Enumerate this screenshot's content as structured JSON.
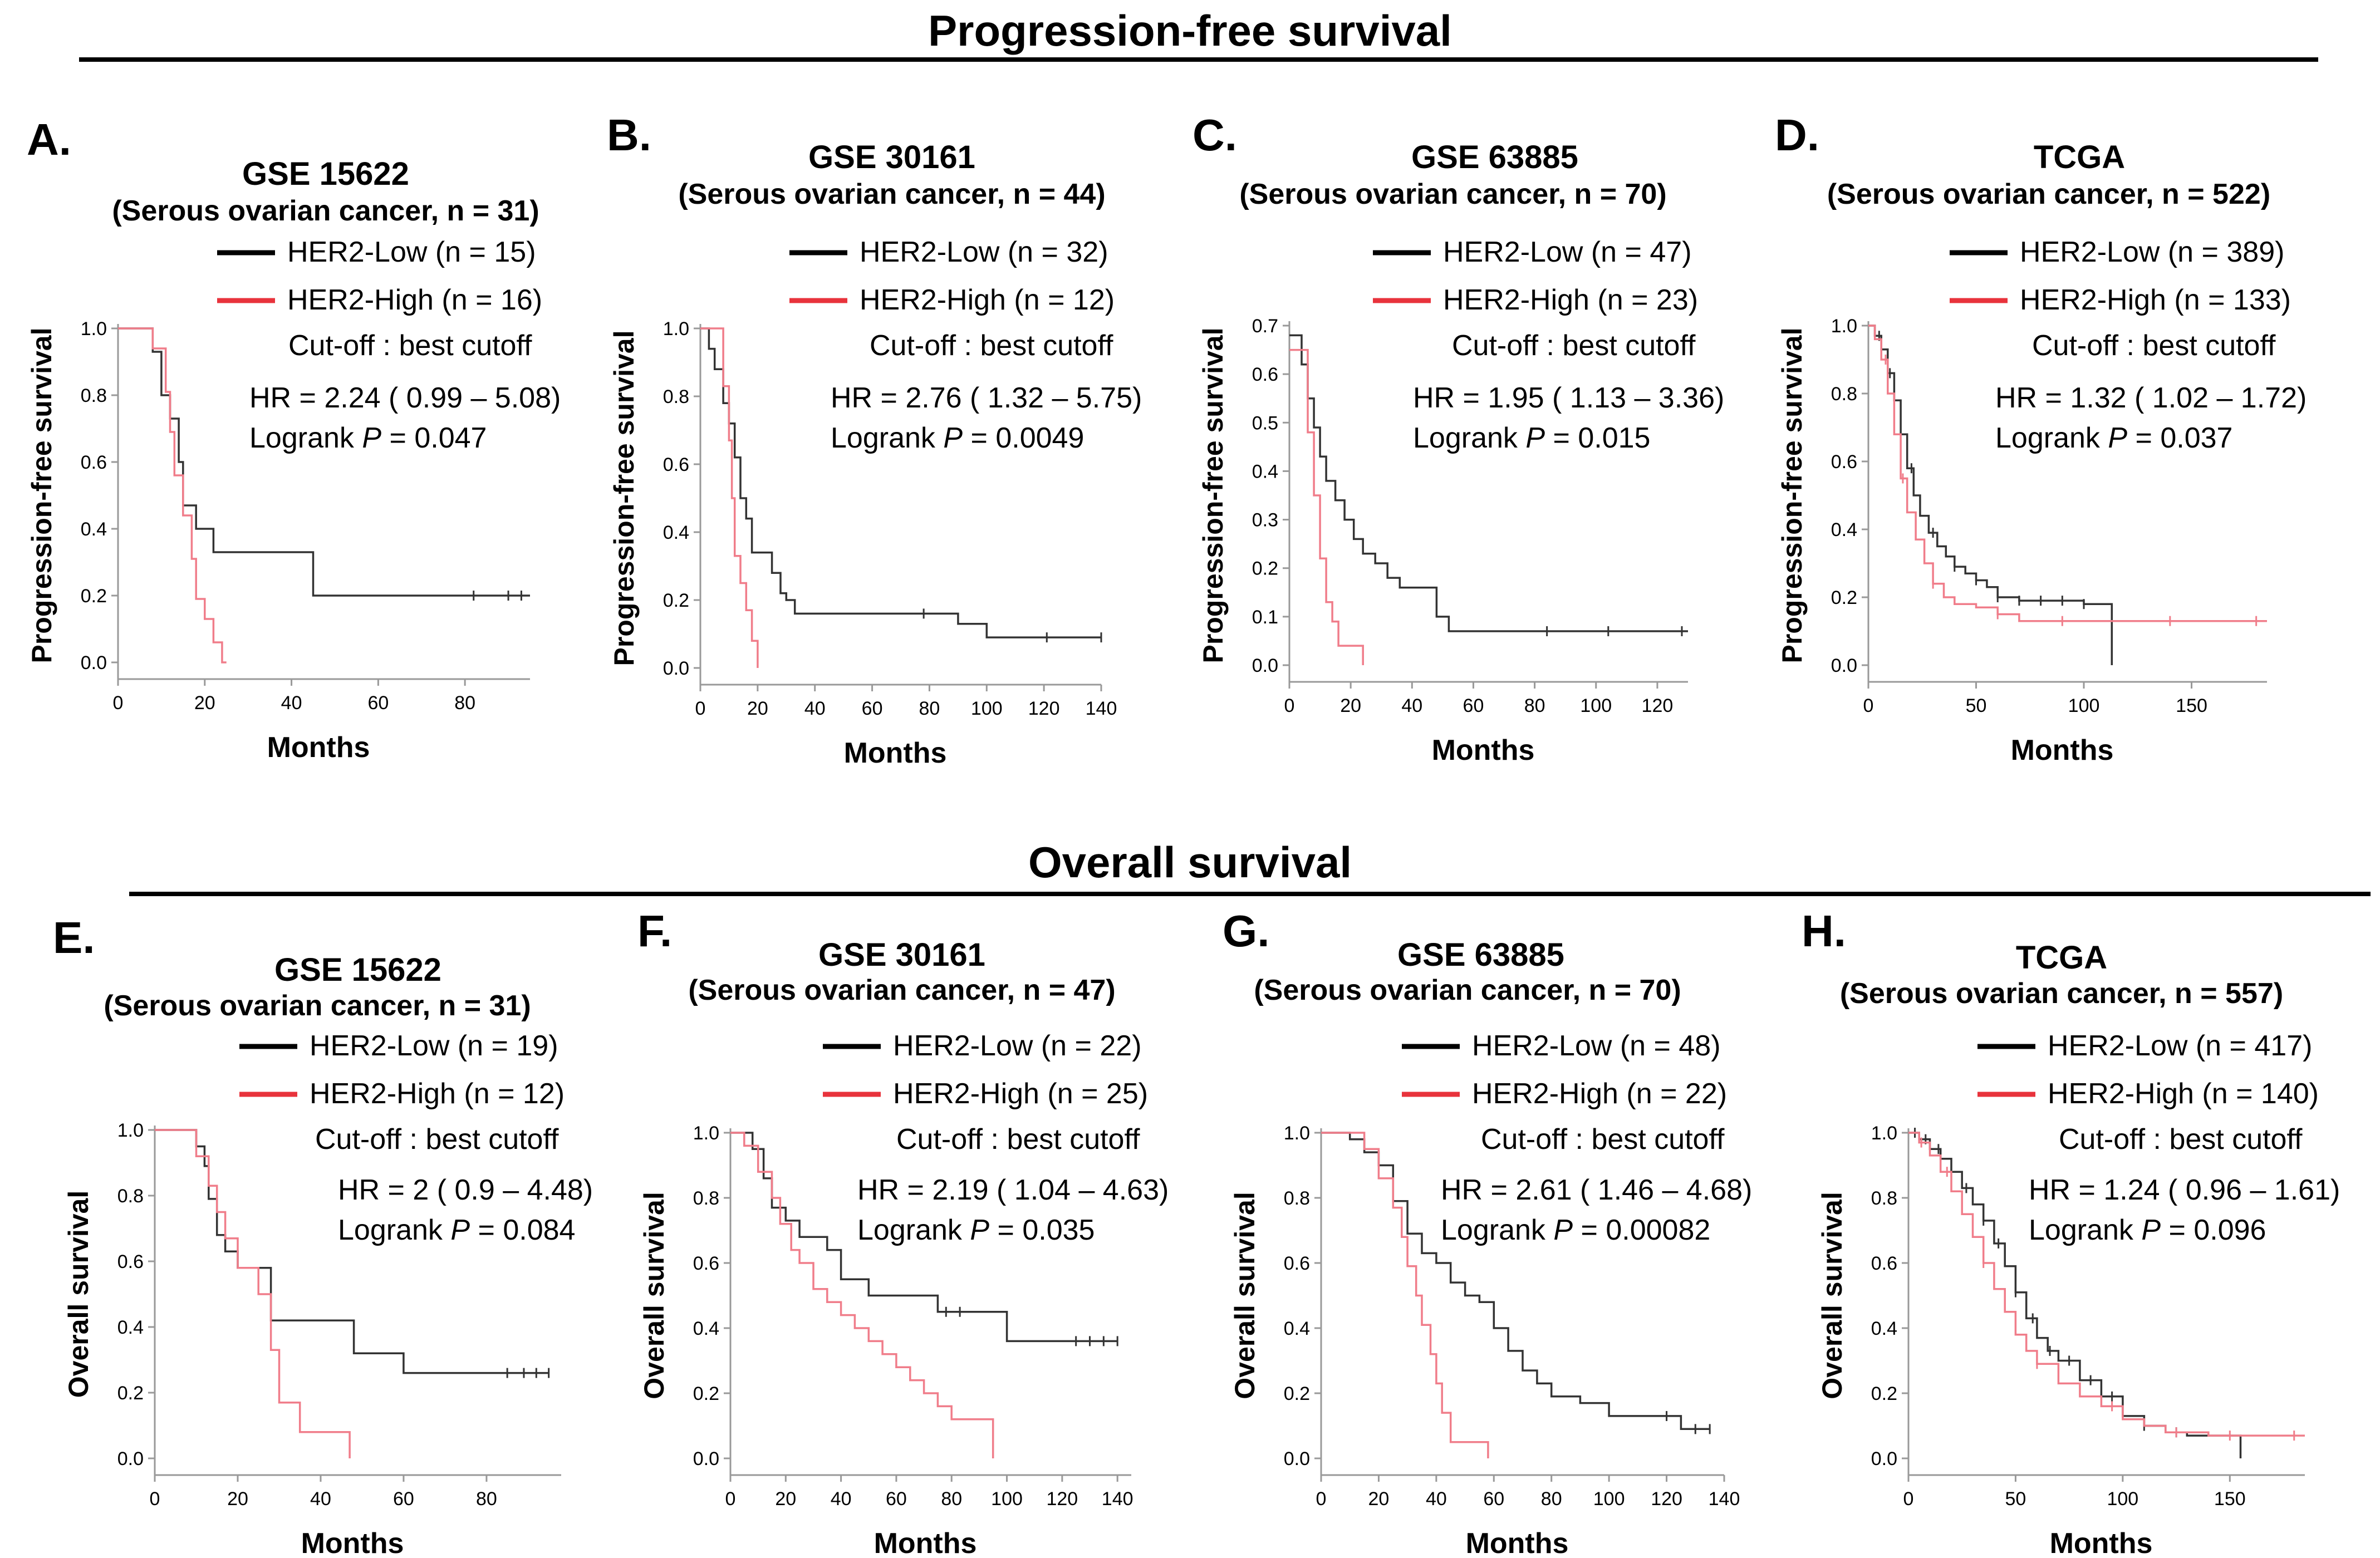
{
  "sections": {
    "pfs_title": "Progression-free  survival",
    "os_title": "Overall survival"
  },
  "colors": {
    "low": "#000000",
    "high": "#e8333c",
    "high_line": "#f07d8a",
    "low_line": "#333333"
  },
  "chart_data": [
    {
      "type": "line",
      "letter": "A.",
      "dataset": "GSE 15622",
      "subtitle": "(Serous ovarian cancer, n = 31)",
      "ylabel": "Progression-free survival",
      "xlabel": "Months",
      "xlim": [
        0,
        95
      ],
      "xticks": [
        0,
        20,
        40,
        60,
        80
      ],
      "ylim": [
        0,
        1.0
      ],
      "yticks": [
        0.0,
        0.2,
        0.4,
        0.6,
        0.8,
        1.0
      ],
      "ytick_labels": [
        "0.0",
        "0.2",
        "0.4",
        "0.6",
        "0.8",
        "1.0"
      ],
      "legend": {
        "low": "HER2-Low (n = 15)",
        "high": "HER2-High (n = 16)",
        "cutoff": "Cut-off : best cutoff"
      },
      "hr": "HR = 2.24 ( 0.99 – 5.08)",
      "logrank_prefix": "Logrank ",
      "p_label": "P",
      "p_value": " = 0.047",
      "series": [
        {
          "name": "HER2-Low",
          "x": [
            0,
            8,
            10,
            12,
            14,
            15,
            18,
            22,
            45,
            95
          ],
          "y": [
            1.0,
            0.93,
            0.8,
            0.73,
            0.6,
            0.47,
            0.4,
            0.33,
            0.2,
            0.2
          ],
          "censor_x": [
            82,
            90,
            93
          ]
        },
        {
          "name": "HER2-High",
          "x": [
            0,
            8,
            11,
            12,
            13,
            15,
            17,
            18,
            20,
            22,
            24,
            25
          ],
          "y": [
            1.0,
            0.94,
            0.81,
            0.69,
            0.56,
            0.44,
            0.31,
            0.19,
            0.13,
            0.06,
            0.0,
            0.0
          ],
          "censor_x": []
        }
      ]
    },
    {
      "type": "line",
      "letter": "B.",
      "dataset": "GSE 30161",
      "subtitle": "(Serous ovarian cancer, n = 44)",
      "ylabel": "Progression-free survival",
      "xlabel": "Months",
      "xlim": [
        0,
        140
      ],
      "xticks": [
        0,
        20,
        40,
        60,
        80,
        100,
        120,
        140
      ],
      "ylim": [
        0,
        1.0
      ],
      "yticks": [
        0.0,
        0.2,
        0.4,
        0.6,
        0.8,
        1.0
      ],
      "ytick_labels": [
        "0.0",
        "0.2",
        "0.4",
        "0.6",
        "0.8",
        "1.0"
      ],
      "legend": {
        "low": "HER2-Low (n = 32)",
        "high": "HER2-High (n = 12)",
        "cutoff": "Cut-off : best cutoff"
      },
      "hr": "HR = 2.76 ( 1.32 – 5.75)",
      "logrank_prefix": "Logrank ",
      "p_label": "P",
      "p_value": " = 0.0049",
      "series": [
        {
          "name": "HER2-Low",
          "x": [
            0,
            3,
            5,
            8,
            10,
            12,
            14,
            16,
            18,
            20,
            25,
            28,
            30,
            33,
            90,
            100,
            140
          ],
          "y": [
            1.0,
            0.94,
            0.88,
            0.78,
            0.72,
            0.62,
            0.5,
            0.44,
            0.34,
            0.34,
            0.28,
            0.22,
            0.2,
            0.16,
            0.13,
            0.09,
            0.09
          ],
          "censor_x": [
            78,
            121,
            140
          ]
        },
        {
          "name": "HER2-High",
          "x": [
            0,
            8,
            10,
            11,
            12,
            14,
            16,
            18,
            20
          ],
          "y": [
            1.0,
            0.83,
            0.67,
            0.5,
            0.33,
            0.25,
            0.17,
            0.08,
            0.0
          ],
          "censor_x": []
        }
      ]
    },
    {
      "type": "line",
      "letter": "C.",
      "dataset": "GSE 63885",
      "subtitle": "(Serous ovarian cancer, n = 70)",
      "ylabel": "Progression-free survival",
      "xlabel": "Months",
      "xlim": [
        0,
        130
      ],
      "xticks": [
        0,
        20,
        40,
        60,
        80,
        100,
        120
      ],
      "ylim": [
        0,
        0.7
      ],
      "yticks": [
        0.0,
        0.1,
        0.2,
        0.3,
        0.4,
        0.5,
        0.6,
        0.7
      ],
      "ytick_labels": [
        "0.0",
        "0.1",
        "0.2",
        "0.3",
        "0.4",
        "0.5",
        "0.6",
        "0.7"
      ],
      "legend": {
        "low": "HER2-Low (n = 47)",
        "high": "HER2-High (n = 23)",
        "cutoff": "Cut-off : best cutoff"
      },
      "hr": "HR = 1.95 ( 1.13 – 3.36)",
      "logrank_prefix": "Logrank ",
      "p_label": "P",
      "p_value": " = 0.015",
      "series": [
        {
          "name": "HER2-Low",
          "x": [
            0,
            4,
            6,
            8,
            10,
            12,
            15,
            18,
            21,
            24,
            28,
            32,
            36,
            42,
            48,
            52,
            130
          ],
          "y": [
            0.68,
            0.62,
            0.55,
            0.49,
            0.43,
            0.38,
            0.34,
            0.3,
            0.26,
            0.23,
            0.21,
            0.18,
            0.16,
            0.16,
            0.1,
            0.07,
            0.07
          ],
          "censor_x": [
            84,
            104,
            128
          ]
        },
        {
          "name": "HER2-High",
          "x": [
            0,
            6,
            8,
            10,
            12,
            14,
            16,
            20,
            24
          ],
          "y": [
            0.65,
            0.48,
            0.35,
            0.22,
            0.13,
            0.09,
            0.04,
            0.04,
            0.0
          ],
          "censor_x": []
        }
      ]
    },
    {
      "type": "line",
      "letter": "D.",
      "dataset": "TCGA",
      "subtitle": "(Serous ovarian cancer, n = 522)",
      "ylabel": "Progression-free survival",
      "xlabel": "Months",
      "xlim": [
        0,
        185
      ],
      "xticks": [
        0,
        50,
        100,
        150
      ],
      "ylim": [
        0,
        1.0
      ],
      "yticks": [
        0.0,
        0.2,
        0.4,
        0.6,
        0.8,
        1.0
      ],
      "ytick_labels": [
        "0.0",
        "0.2",
        "0.4",
        "0.6",
        "0.8",
        "1.0"
      ],
      "legend": {
        "low": "HER2-Low (n = 389)",
        "high": "HER2-High (n = 133)",
        "cutoff": "Cut-off : best cutoff"
      },
      "hr": "HR = 1.32 ( 1.02 – 1.72)",
      "logrank_prefix": "Logrank ",
      "p_label": "P",
      "p_value": " = 0.037",
      "series": [
        {
          "name": "HER2-Low",
          "x": [
            0,
            3,
            6,
            9,
            12,
            15,
            18,
            21,
            24,
            28,
            32,
            36,
            40,
            45,
            50,
            55,
            60,
            70,
            80,
            90,
            100,
            113,
            113
          ],
          "y": [
            1.0,
            0.97,
            0.93,
            0.86,
            0.78,
            0.68,
            0.58,
            0.5,
            0.44,
            0.39,
            0.35,
            0.32,
            0.29,
            0.27,
            0.25,
            0.23,
            0.2,
            0.19,
            0.19,
            0.19,
            0.18,
            0.18,
            0.0
          ],
          "censor_x": [
            5,
            10,
            20,
            30,
            40,
            50,
            60,
            70,
            80,
            90,
            100
          ]
        },
        {
          "name": "HER2-High",
          "x": [
            0,
            3,
            6,
            9,
            12,
            15,
            18,
            22,
            26,
            30,
            35,
            40,
            50,
            60,
            70,
            185
          ],
          "y": [
            1.0,
            0.96,
            0.9,
            0.8,
            0.68,
            0.55,
            0.45,
            0.37,
            0.3,
            0.24,
            0.2,
            0.18,
            0.17,
            0.15,
            0.13,
            0.13
          ],
          "censor_x": [
            8,
            16,
            30,
            60,
            90,
            140,
            180
          ]
        }
      ]
    },
    {
      "type": "line",
      "letter": "E.",
      "dataset": "GSE 15622",
      "subtitle": "(Serous ovarian cancer, n = 31)",
      "ylabel": "Overall survival",
      "xlabel": "Months",
      "xlim": [
        0,
        98
      ],
      "xticks": [
        0,
        20,
        40,
        60,
        80
      ],
      "ylim": [
        0,
        1.0
      ],
      "yticks": [
        0.0,
        0.2,
        0.4,
        0.6,
        0.8,
        1.0
      ],
      "ytick_labels": [
        "0.0",
        "0.2",
        "0.4",
        "0.6",
        "0.8",
        "1.0"
      ],
      "legend": {
        "low": "HER2-Low (n = 19)",
        "high": "HER2-High (n = 12)",
        "cutoff": "Cut-off : best cutoff"
      },
      "hr": "HR = 2 ( 0.9 – 4.48)",
      "logrank_prefix": "Logrank ",
      "p_label": "P",
      "p_value": " = 0.084",
      "series": [
        {
          "name": "HER2-Low",
          "x": [
            0,
            10,
            12,
            13,
            15,
            17,
            20,
            25,
            28,
            40,
            48,
            60,
            95
          ],
          "y": [
            1.0,
            0.95,
            0.89,
            0.79,
            0.68,
            0.63,
            0.58,
            0.58,
            0.42,
            0.42,
            0.32,
            0.26,
            0.26
          ],
          "censor_x": [
            85,
            89,
            92,
            95
          ]
        },
        {
          "name": "HER2-High",
          "x": [
            0,
            10,
            13,
            15,
            17,
            20,
            25,
            28,
            30,
            35,
            47,
            47
          ],
          "y": [
            1.0,
            0.92,
            0.83,
            0.75,
            0.67,
            0.58,
            0.5,
            0.33,
            0.17,
            0.08,
            0.08,
            0.0
          ],
          "censor_x": []
        }
      ]
    },
    {
      "type": "line",
      "letter": "F.",
      "dataset": "GSE 30161",
      "subtitle": "(Serous ovarian cancer, n = 47)",
      "ylabel": "Overall survival",
      "xlabel": "Months",
      "xlim": [
        0,
        145
      ],
      "xticks": [
        0,
        20,
        40,
        60,
        80,
        100,
        120,
        140
      ],
      "ylim": [
        0,
        1.0
      ],
      "yticks": [
        0.0,
        0.2,
        0.4,
        0.6,
        0.8,
        1.0
      ],
      "ytick_labels": [
        "0.0",
        "0.2",
        "0.4",
        "0.6",
        "0.8",
        "1.0"
      ],
      "legend": {
        "low": "HER2-Low (n = 22)",
        "high": "HER2-High (n = 25)",
        "cutoff": "Cut-off : best cutoff"
      },
      "hr": "HR = 2.19 ( 1.04 – 4.63)",
      "logrank_prefix": "Logrank ",
      "p_label": "P",
      "p_value": " = 0.035",
      "series": [
        {
          "name": "HER2-Low",
          "x": [
            0,
            8,
            12,
            15,
            20,
            25,
            30,
            35,
            40,
            50,
            60,
            75,
            90,
            100,
            140
          ],
          "y": [
            1.0,
            0.95,
            0.86,
            0.77,
            0.73,
            0.68,
            0.68,
            0.64,
            0.55,
            0.5,
            0.5,
            0.45,
            0.45,
            0.36,
            0.36
          ],
          "censor_x": [
            78,
            83,
            125,
            130,
            135,
            140
          ]
        },
        {
          "name": "HER2-High",
          "x": [
            0,
            5,
            10,
            15,
            18,
            22,
            25,
            30,
            35,
            40,
            45,
            50,
            55,
            60,
            65,
            70,
            75,
            80,
            92,
            95
          ],
          "y": [
            1.0,
            0.96,
            0.88,
            0.8,
            0.72,
            0.64,
            0.6,
            0.52,
            0.48,
            0.44,
            0.4,
            0.36,
            0.32,
            0.28,
            0.24,
            0.2,
            0.16,
            0.12,
            0.12,
            0.0
          ],
          "censor_x": []
        }
      ]
    },
    {
      "type": "line",
      "letter": "G.",
      "dataset": "GSE 63885",
      "subtitle": "(Serous ovarian cancer, n = 70)",
      "ylabel": "Overall survival",
      "xlabel": "Months",
      "xlim": [
        0,
        140
      ],
      "xticks": [
        0,
        20,
        40,
        60,
        80,
        100,
        120,
        140
      ],
      "ylim": [
        0,
        1.0
      ],
      "yticks": [
        0.0,
        0.2,
        0.4,
        0.6,
        0.8,
        1.0
      ],
      "ytick_labels": [
        "0.0",
        "0.2",
        "0.4",
        "0.6",
        "0.8",
        "1.0"
      ],
      "legend": {
        "low": "HER2-Low (n = 48)",
        "high": "HER2-High (n = 22)",
        "cutoff": "Cut-off : best cutoff"
      },
      "hr": "HR = 2.61 ( 1.46 – 4.68)",
      "logrank_prefix": "Logrank ",
      "p_label": "P",
      "p_value": " = 0.00082",
      "series": [
        {
          "name": "HER2-Low",
          "x": [
            0,
            10,
            15,
            20,
            25,
            30,
            35,
            40,
            45,
            50,
            55,
            60,
            65,
            70,
            75,
            80,
            90,
            100,
            110,
            125,
            135
          ],
          "y": [
            1.0,
            0.98,
            0.94,
            0.9,
            0.79,
            0.69,
            0.63,
            0.6,
            0.54,
            0.5,
            0.48,
            0.4,
            0.33,
            0.27,
            0.23,
            0.19,
            0.17,
            0.13,
            0.13,
            0.09,
            0.09
          ],
          "censor_x": [
            120,
            130,
            135
          ]
        },
        {
          "name": "HER2-High",
          "x": [
            0,
            15,
            20,
            25,
            28,
            30,
            33,
            35,
            38,
            40,
            42,
            45,
            50,
            58,
            58
          ],
          "y": [
            1.0,
            0.95,
            0.86,
            0.77,
            0.68,
            0.59,
            0.5,
            0.41,
            0.32,
            0.23,
            0.14,
            0.05,
            0.05,
            0.05,
            0.0
          ],
          "censor_x": []
        }
      ]
    },
    {
      "type": "line",
      "letter": "H.",
      "dataset": "TCGA",
      "subtitle": "(Serous ovarian cancer, n = 557)",
      "ylabel": "Overall survival",
      "xlabel": "Months",
      "xlim": [
        0,
        185
      ],
      "xticks": [
        0,
        50,
        100,
        150
      ],
      "ylim": [
        0,
        1.0
      ],
      "yticks": [
        0.0,
        0.2,
        0.4,
        0.6,
        0.8,
        1.0
      ],
      "ytick_labels": [
        "0.0",
        "0.2",
        "0.4",
        "0.6",
        "0.8",
        "1.0"
      ],
      "legend": {
        "low": "HER2-Low (n = 417)",
        "high": "HER2-High (n = 140)",
        "cutoff": "Cut-off : best cutoff"
      },
      "hr": "HR = 1.24 ( 0.96 – 1.61)",
      "logrank_prefix": "Logrank ",
      "p_label": "P",
      "p_value": " = 0.096",
      "series": [
        {
          "name": "HER2-Low",
          "x": [
            0,
            5,
            10,
            15,
            20,
            25,
            30,
            35,
            40,
            45,
            50,
            55,
            60,
            65,
            70,
            80,
            90,
            100,
            110,
            120,
            130,
            140,
            155,
            155
          ],
          "y": [
            1.0,
            0.98,
            0.95,
            0.92,
            0.88,
            0.83,
            0.78,
            0.73,
            0.66,
            0.59,
            0.51,
            0.43,
            0.37,
            0.33,
            0.3,
            0.24,
            0.19,
            0.13,
            0.1,
            0.08,
            0.07,
            0.07,
            0.07,
            0.0
          ],
          "censor_x": [
            3,
            8,
            14,
            20,
            27,
            35,
            42,
            50,
            58,
            66,
            75,
            85,
            95,
            110,
            125
          ]
        },
        {
          "name": "HER2-High",
          "x": [
            0,
            5,
            10,
            15,
            20,
            25,
            30,
            35,
            40,
            45,
            50,
            55,
            60,
            70,
            80,
            90,
            100,
            110,
            120,
            140,
            160,
            185
          ],
          "y": [
            1.0,
            0.97,
            0.93,
            0.88,
            0.82,
            0.75,
            0.68,
            0.6,
            0.52,
            0.45,
            0.38,
            0.33,
            0.29,
            0.23,
            0.19,
            0.16,
            0.12,
            0.1,
            0.08,
            0.07,
            0.07,
            0.07
          ],
          "censor_x": [
            6,
            18,
            35,
            60,
            95,
            125,
            150,
            180
          ]
        }
      ]
    }
  ]
}
